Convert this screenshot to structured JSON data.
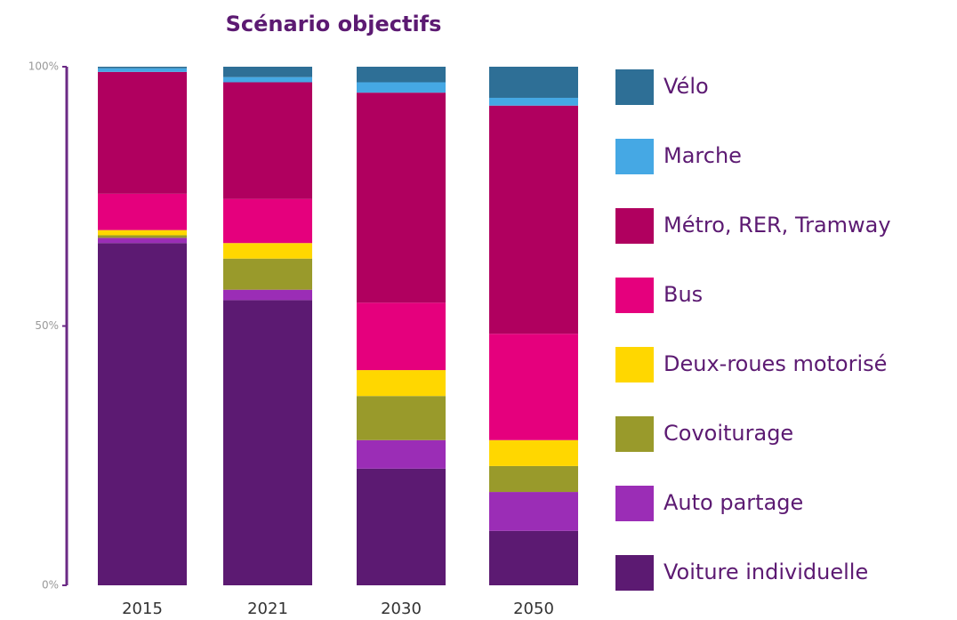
{
  "chart_data": {
    "type": "stacked_bar",
    "title": "Scénario objectifs",
    "categories": [
      "2015",
      "2021",
      "2030",
      "2050"
    ],
    "series": [
      {
        "name": "Voiture individuelle",
        "color": "#5c1a72",
        "values": [
          66,
          55,
          22.5,
          10.5
        ]
      },
      {
        "name": "Auto partage",
        "color": "#9b2db6",
        "values": [
          1,
          2,
          5.5,
          7.5
        ]
      },
      {
        "name": "Covoiturage",
        "color": "#999a2b",
        "values": [
          0.5,
          6,
          8.5,
          5
        ]
      },
      {
        "name": "Deux-roues motorisé",
        "color": "#ffd700",
        "values": [
          1,
          3,
          5,
          5
        ]
      },
      {
        "name": "Bus",
        "color": "#e5007d",
        "values": [
          7,
          8.5,
          13,
          20.5
        ]
      },
      {
        "name": "Métro, RER, Tramway",
        "color": "#b0005f",
        "values": [
          23.5,
          22.5,
          40.5,
          44
        ]
      },
      {
        "name": "Marche",
        "color": "#45a8e4",
        "values": [
          0.7,
          1,
          2,
          1.5
        ]
      },
      {
        "name": "Vélo",
        "color": "#2e6f96",
        "values": [
          0.3,
          2,
          3,
          6
        ]
      }
    ],
    "ylim": [
      0,
      100
    ],
    "yticks": [
      {
        "value": 0,
        "label": "0%"
      },
      {
        "value": 50,
        "label": "50%"
      },
      {
        "value": 100,
        "label": "100%"
      }
    ]
  }
}
